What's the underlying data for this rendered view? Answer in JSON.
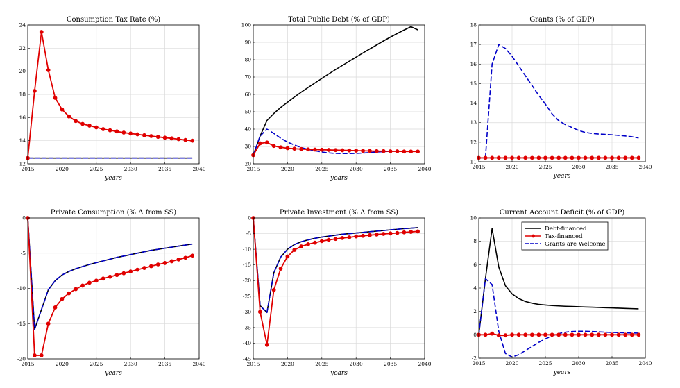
{
  "colors": {
    "debt": "#000000",
    "tax": "#e00000",
    "grants": "#0000c8",
    "grid": "#d9d9d9",
    "axis": "#000000"
  },
  "legend": {
    "placement": "top-center",
    "entries": [
      "Debt-financed",
      "Tax-financed",
      "Grants are Welcome"
    ]
  },
  "chart_data": [
    {
      "type": "line",
      "title": "Consumption Tax Rate (%)",
      "xlabel": "years",
      "xlim": [
        2015,
        2040
      ],
      "ylim": [
        12,
        24
      ],
      "xticks": [
        2015,
        2020,
        2025,
        2030,
        2035,
        2040
      ],
      "yticks": [
        12,
        14,
        16,
        18,
        20,
        22,
        24
      ],
      "grid": true,
      "x": [
        2015,
        2016,
        2017,
        2018,
        2019,
        2020,
        2021,
        2022,
        2023,
        2024,
        2025,
        2026,
        2027,
        2028,
        2029,
        2030,
        2031,
        2032,
        2033,
        2034,
        2035,
        2036,
        2037,
        2038,
        2039
      ],
      "series": [
        {
          "key": "debt",
          "values": [
            12.5,
            12.5,
            12.5,
            12.5,
            12.5,
            12.5,
            12.5,
            12.5,
            12.5,
            12.5,
            12.5,
            12.5,
            12.5,
            12.5,
            12.5,
            12.5,
            12.5,
            12.5,
            12.5,
            12.5,
            12.5,
            12.5,
            12.5,
            12.5,
            12.5
          ]
        },
        {
          "key": "grants",
          "values": [
            12.5,
            12.5,
            12.5,
            12.5,
            12.5,
            12.5,
            12.5,
            12.5,
            12.5,
            12.5,
            12.5,
            12.5,
            12.5,
            12.5,
            12.5,
            12.5,
            12.5,
            12.5,
            12.5,
            12.5,
            12.5,
            12.5,
            12.5,
            12.5,
            12.5
          ]
        },
        {
          "key": "tax",
          "values": [
            12.5,
            18.3,
            23.4,
            20.1,
            17.7,
            16.7,
            16.1,
            15.7,
            15.45,
            15.3,
            15.15,
            15.0,
            14.9,
            14.8,
            14.7,
            14.62,
            14.55,
            14.47,
            14.4,
            14.33,
            14.26,
            14.2,
            14.13,
            14.06,
            14.0
          ]
        }
      ]
    },
    {
      "type": "line",
      "title": "Total Public Debt (% of GDP)",
      "xlabel": "years",
      "xlim": [
        2015,
        2040
      ],
      "ylim": [
        20,
        100
      ],
      "xticks": [
        2015,
        2020,
        2025,
        2030,
        2035,
        2040
      ],
      "yticks": [
        20,
        30,
        40,
        50,
        60,
        70,
        80,
        90,
        100
      ],
      "grid": true,
      "x": [
        2015,
        2016,
        2017,
        2018,
        2019,
        2020,
        2021,
        2022,
        2023,
        2024,
        2025,
        2026,
        2027,
        2028,
        2029,
        2030,
        2031,
        2032,
        2033,
        2034,
        2035,
        2036,
        2037,
        2038,
        2039
      ],
      "series": [
        {
          "key": "debt",
          "values": [
            25,
            36,
            45,
            49,
            52.5,
            55.5,
            58.5,
            61.3,
            64.0,
            66.6,
            69.2,
            71.8,
            74.3,
            76.7,
            79.1,
            81.5,
            83.9,
            86.2,
            88.5,
            90.8,
            93.0,
            95.1,
            97.1,
            99.0,
            97.2
          ]
        },
        {
          "key": "grants",
          "values": [
            25,
            36,
            40,
            37.5,
            34.8,
            32.5,
            30.8,
            29.4,
            28.3,
            27.5,
            26.8,
            26.3,
            26.0,
            25.9,
            25.9,
            26.0,
            26.2,
            26.5,
            26.8,
            27.0,
            27.2,
            27.3,
            27.3,
            27.3,
            27.3
          ]
        },
        {
          "key": "tax",
          "values": [
            25,
            31.8,
            32.3,
            30.3,
            29.5,
            29.0,
            28.7,
            28.5,
            28.3,
            28.2,
            28.1,
            28.0,
            27.9,
            27.8,
            27.7,
            27.6,
            27.5,
            27.4,
            27.3,
            27.3,
            27.2,
            27.2,
            27.1,
            27.1,
            27.1
          ]
        }
      ]
    },
    {
      "type": "line",
      "title": "Grants (% of GDP)",
      "xlabel": "years",
      "xlim": [
        2015,
        2040
      ],
      "ylim": [
        11,
        18
      ],
      "xticks": [
        2015,
        2020,
        2025,
        2030,
        2035,
        2040
      ],
      "yticks": [
        11,
        12,
        13,
        14,
        15,
        16,
        17,
        18
      ],
      "grid": true,
      "x": [
        2015,
        2016,
        2017,
        2018,
        2019,
        2020,
        2021,
        2022,
        2023,
        2024,
        2025,
        2026,
        2027,
        2028,
        2029,
        2030,
        2031,
        2032,
        2033,
        2034,
        2035,
        2036,
        2037,
        2038,
        2039
      ],
      "series": [
        {
          "key": "debt",
          "values": [
            11.2,
            11.2,
            11.2,
            11.2,
            11.2,
            11.2,
            11.2,
            11.2,
            11.2,
            11.2,
            11.2,
            11.2,
            11.2,
            11.2,
            11.2,
            11.2,
            11.2,
            11.2,
            11.2,
            11.2,
            11.2,
            11.2,
            11.2,
            11.2,
            11.2
          ]
        },
        {
          "key": "grants",
          "values": [
            11.2,
            11.2,
            16.0,
            17.0,
            16.8,
            16.4,
            15.9,
            15.4,
            14.9,
            14.4,
            13.95,
            13.45,
            13.1,
            12.9,
            12.75,
            12.6,
            12.5,
            12.45,
            12.42,
            12.4,
            12.38,
            12.35,
            12.32,
            12.28,
            12.22
          ]
        },
        {
          "key": "tax",
          "values": [
            11.2,
            11.2,
            11.2,
            11.2,
            11.2,
            11.2,
            11.2,
            11.2,
            11.2,
            11.2,
            11.2,
            11.2,
            11.2,
            11.2,
            11.2,
            11.2,
            11.2,
            11.2,
            11.2,
            11.2,
            11.2,
            11.2,
            11.2,
            11.2,
            11.2
          ]
        }
      ]
    },
    {
      "type": "line",
      "title": "Private Consumption (% Δ from SS)",
      "xlabel": "years",
      "xlim": [
        2015,
        2040
      ],
      "ylim": [
        -20,
        0
      ],
      "xticks": [
        2015,
        2020,
        2025,
        2030,
        2035,
        2040
      ],
      "yticks": [
        -20,
        -15,
        -10,
        -5,
        0
      ],
      "grid": true,
      "x": [
        2015,
        2016,
        2017,
        2018,
        2019,
        2020,
        2021,
        2022,
        2023,
        2024,
        2025,
        2026,
        2027,
        2028,
        2029,
        2030,
        2031,
        2032,
        2033,
        2034,
        2035,
        2036,
        2037,
        2038,
        2039
      ],
      "series": [
        {
          "key": "debt",
          "values": [
            0,
            -15.8,
            -13.0,
            -10.2,
            -8.9,
            -8.1,
            -7.6,
            -7.2,
            -6.9,
            -6.6,
            -6.35,
            -6.1,
            -5.85,
            -5.6,
            -5.4,
            -5.2,
            -5.0,
            -4.8,
            -4.6,
            -4.45,
            -4.3,
            -4.15,
            -4.0,
            -3.85,
            -3.7
          ]
        },
        {
          "key": "grants",
          "values": [
            0,
            -15.8,
            -13.0,
            -10.2,
            -8.9,
            -8.1,
            -7.6,
            -7.2,
            -6.9,
            -6.6,
            -6.35,
            -6.1,
            -5.85,
            -5.6,
            -5.4,
            -5.2,
            -5.0,
            -4.8,
            -4.6,
            -4.45,
            -4.3,
            -4.15,
            -4.0,
            -3.85,
            -3.7
          ]
        },
        {
          "key": "tax",
          "values": [
            0,
            -19.5,
            -19.5,
            -15.0,
            -12.7,
            -11.5,
            -10.7,
            -10.1,
            -9.6,
            -9.2,
            -8.9,
            -8.6,
            -8.35,
            -8.1,
            -7.85,
            -7.6,
            -7.35,
            -7.1,
            -6.85,
            -6.6,
            -6.4,
            -6.15,
            -5.9,
            -5.65,
            -5.35
          ]
        }
      ]
    },
    {
      "type": "line",
      "title": "Private Investment (% Δ from SS)",
      "xlabel": "years",
      "xlim": [
        2015,
        2040
      ],
      "ylim": [
        -45,
        0
      ],
      "xticks": [
        2015,
        2020,
        2025,
        2030,
        2035,
        2040
      ],
      "yticks": [
        -45,
        -40,
        -35,
        -30,
        -25,
        -20,
        -15,
        -10,
        -5,
        0
      ],
      "grid": true,
      "x": [
        2015,
        2016,
        2017,
        2018,
        2019,
        2020,
        2021,
        2022,
        2023,
        2024,
        2025,
        2026,
        2027,
        2028,
        2029,
        2030,
        2031,
        2032,
        2033,
        2034,
        2035,
        2036,
        2037,
        2038,
        2039
      ],
      "series": [
        {
          "key": "debt",
          "values": [
            0,
            -28.0,
            -30.2,
            -17.5,
            -12.5,
            -10.0,
            -8.5,
            -7.6,
            -7.0,
            -6.5,
            -6.1,
            -5.8,
            -5.5,
            -5.2,
            -5.0,
            -4.8,
            -4.6,
            -4.4,
            -4.2,
            -4.0,
            -3.8,
            -3.6,
            -3.4,
            -3.25,
            -3.1
          ]
        },
        {
          "key": "grants",
          "values": [
            0,
            -28.0,
            -30.2,
            -17.5,
            -12.5,
            -10.0,
            -8.5,
            -7.6,
            -7.0,
            -6.5,
            -6.1,
            -5.8,
            -5.5,
            -5.2,
            -5.0,
            -4.8,
            -4.6,
            -4.4,
            -4.2,
            -4.0,
            -3.8,
            -3.6,
            -3.4,
            -3.25,
            -3.1
          ]
        },
        {
          "key": "tax",
          "values": [
            0,
            -30.0,
            -40.5,
            -23.0,
            -16.2,
            -12.3,
            -10.2,
            -9.1,
            -8.4,
            -7.9,
            -7.4,
            -7.0,
            -6.7,
            -6.4,
            -6.2,
            -5.9,
            -5.7,
            -5.5,
            -5.3,
            -5.1,
            -4.95,
            -4.8,
            -4.6,
            -4.45,
            -4.3
          ]
        }
      ]
    },
    {
      "type": "line",
      "title": "Current Account Deficit (% of GDP)",
      "xlabel": "years",
      "xlim": [
        2015,
        2040
      ],
      "ylim": [
        -2,
        10
      ],
      "xticks": [
        2015,
        2020,
        2025,
        2030,
        2035,
        2040
      ],
      "yticks": [
        -2,
        0,
        2,
        4,
        6,
        8,
        10
      ],
      "grid": true,
      "x": [
        2015,
        2016,
        2017,
        2018,
        2019,
        2020,
        2021,
        2022,
        2023,
        2024,
        2025,
        2026,
        2027,
        2028,
        2029,
        2030,
        2031,
        2032,
        2033,
        2034,
        2035,
        2036,
        2037,
        2038,
        2039
      ],
      "series": [
        {
          "key": "debt",
          "values": [
            0,
            4.8,
            9.1,
            5.8,
            4.2,
            3.5,
            3.1,
            2.85,
            2.7,
            2.6,
            2.55,
            2.5,
            2.47,
            2.44,
            2.42,
            2.4,
            2.38,
            2.36,
            2.34,
            2.32,
            2.3,
            2.28,
            2.26,
            2.24,
            2.22
          ]
        },
        {
          "key": "grants",
          "values": [
            0,
            4.8,
            4.3,
            0.3,
            -1.6,
            -1.9,
            -1.7,
            -1.35,
            -1.0,
            -0.65,
            -0.35,
            -0.1,
            0.1,
            0.22,
            0.28,
            0.3,
            0.3,
            0.28,
            0.25,
            0.22,
            0.2,
            0.18,
            0.16,
            0.15,
            0.14
          ]
        },
        {
          "key": "tax",
          "values": [
            0,
            0.0,
            0.1,
            -0.05,
            -0.05,
            0.0,
            0.0,
            0.0,
            0.0,
            0.0,
            0.0,
            0.0,
            0.0,
            0.0,
            0.0,
            0.0,
            0.0,
            0.0,
            0.0,
            0.0,
            0.0,
            0.0,
            0.0,
            0.0,
            0.0
          ]
        }
      ]
    }
  ]
}
